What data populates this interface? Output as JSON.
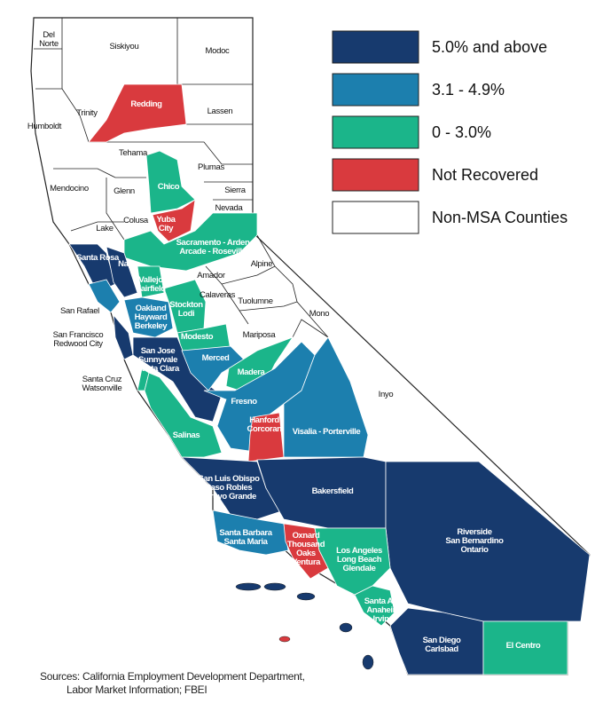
{
  "legend": [
    {
      "label": "5.0% and above",
      "color": "#173a6e"
    },
    {
      "label": "3.1 - 4.9%",
      "color": "#1c7fae"
    },
    {
      "label": "0 - 3.0%",
      "color": "#1bb58a"
    },
    {
      "label": "Not Recovered",
      "color": "#d93a3e"
    },
    {
      "label": "Non-MSA Counties",
      "color": "#ffffff"
    }
  ],
  "regions": [
    {
      "label": [
        "Redding"
      ],
      "color": "#d93a3e"
    },
    {
      "label": [
        "Chico"
      ],
      "color": "#1bb58a"
    },
    {
      "label": [
        "Yuba",
        "City"
      ],
      "color": "#d93a3e"
    },
    {
      "label": [
        "Sacramento - Arden",
        "Arcade - Roseville"
      ],
      "color": "#1bb58a"
    },
    {
      "label": [
        "Santa Rosa"
      ],
      "color": "#173a6e"
    },
    {
      "label": [
        "Napa"
      ],
      "color": "#173a6e"
    },
    {
      "label": [
        "Vallejo",
        "Fairfield"
      ],
      "color": "#1bb58a"
    },
    {
      "label": [
        "San Rafael"
      ],
      "color": "#1c7fae"
    },
    {
      "label": [
        "Oakland",
        "Hayward",
        "Berkeley"
      ],
      "color": "#1c7fae"
    },
    {
      "label": [
        "Stockton",
        "Lodi"
      ],
      "color": "#1bb58a"
    },
    {
      "label": [
        "San Francisco",
        "Redwood City"
      ],
      "color": "#173a6e"
    },
    {
      "label": [
        "Modesto"
      ],
      "color": "#1bb58a"
    },
    {
      "label": [
        "San Jose",
        "Sunnyvale",
        "Santa Clara"
      ],
      "color": "#173a6e"
    },
    {
      "label": [
        "Merced"
      ],
      "color": "#1c7fae"
    },
    {
      "label": [
        "Madera"
      ],
      "color": "#1bb58a"
    },
    {
      "label": [
        "Fresno"
      ],
      "color": "#1c7fae"
    },
    {
      "label": [
        "Santa Cruz",
        "Watsonville"
      ],
      "color": "#1bb58a"
    },
    {
      "label": [
        "Salinas"
      ],
      "color": "#1bb58a"
    },
    {
      "label": [
        "Hanford",
        "Corcoran"
      ],
      "color": "#d93a3e"
    },
    {
      "label": [
        "Visalia - Porterville"
      ],
      "color": "#1c7fae"
    },
    {
      "label": [
        "San Luis Obispo",
        "Paso Robles",
        "Arroyo Grande"
      ],
      "color": "#173a6e"
    },
    {
      "label": [
        "Bakersfield"
      ],
      "color": "#173a6e"
    },
    {
      "label": [
        "Riverside",
        "San Bernardino",
        "Ontario"
      ],
      "color": "#173a6e"
    },
    {
      "label": [
        "Santa Barbara",
        "Santa Maria"
      ],
      "color": "#1c7fae"
    },
    {
      "label": [
        "Oxnard",
        "Thousand",
        "Oaks",
        "Ventura"
      ],
      "color": "#d93a3e"
    },
    {
      "label": [
        "Los Angeles",
        "Long Beach",
        "Glendale"
      ],
      "color": "#1bb58a"
    },
    {
      "label": [
        "Santa Ana",
        "Anaheim",
        "Irvine"
      ],
      "color": "#1bb58a"
    },
    {
      "label": [
        "San Diego",
        "Carlsbad"
      ],
      "color": "#173a6e"
    },
    {
      "label": [
        "El Centro"
      ],
      "color": "#1bb58a"
    }
  ],
  "counties": [
    [
      "Del",
      "Norte"
    ],
    [
      "Siskiyou"
    ],
    [
      "Modoc"
    ],
    [
      "Humboldt"
    ],
    [
      "Trinity"
    ],
    [
      "Lassen"
    ],
    [
      "Tehama"
    ],
    [
      "Plumas"
    ],
    [
      "Mendocino"
    ],
    [
      "Glenn"
    ],
    [
      "Sierra"
    ],
    [
      "Colusa"
    ],
    [
      "Nevada"
    ],
    [
      "Lake"
    ],
    [
      "Alpine"
    ],
    [
      "Amador"
    ],
    [
      "Calaveras"
    ],
    [
      "Tuolumne"
    ],
    [
      "Mono"
    ],
    [
      "Mariposa"
    ],
    [
      "Inyo"
    ]
  ],
  "source": [
    "Sources: California Employment Development Department,",
    "Labor Market Information; FBEI"
  ]
}
